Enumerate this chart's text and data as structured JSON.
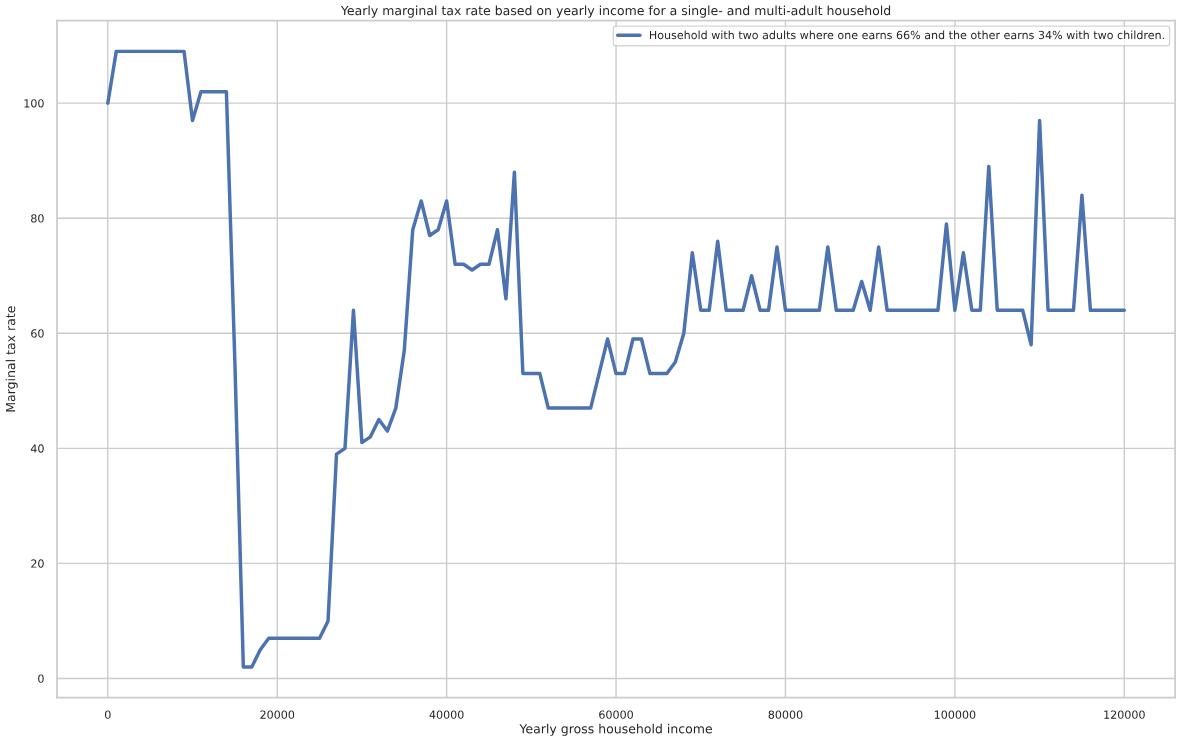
{
  "chart_data": {
    "type": "line",
    "title": "Yearly marginal tax rate based on yearly income for a single- and multi-adult household",
    "xlabel": "Yearly gross household income",
    "ylabel": "Marginal tax rate",
    "x": [
      0,
      1000,
      2000,
      3000,
      4000,
      5000,
      6000,
      7000,
      8000,
      9000,
      10000,
      11000,
      12000,
      13000,
      14000,
      15000,
      16000,
      17000,
      18000,
      19000,
      20000,
      21000,
      22000,
      23000,
      24000,
      25000,
      26000,
      27000,
      28000,
      29000,
      30000,
      31000,
      32000,
      33000,
      34000,
      35000,
      36000,
      37000,
      38000,
      39000,
      40000,
      41000,
      42000,
      43000,
      44000,
      45000,
      46000,
      47000,
      48000,
      49000,
      50000,
      51000,
      52000,
      53000,
      54000,
      55000,
      56000,
      57000,
      58000,
      59000,
      60000,
      61000,
      62000,
      63000,
      64000,
      65000,
      66000,
      67000,
      68000,
      69000,
      70000,
      71000,
      72000,
      73000,
      74000,
      75000,
      76000,
      77000,
      78000,
      79000,
      80000,
      81000,
      82000,
      83000,
      84000,
      85000,
      86000,
      87000,
      88000,
      89000,
      90000,
      91000,
      92000,
      93000,
      94000,
      95000,
      96000,
      97000,
      98000,
      99000,
      100000,
      101000,
      102000,
      103000,
      104000,
      105000,
      106000,
      107000,
      108000,
      109000,
      110000,
      111000,
      112000,
      113000,
      114000,
      115000,
      116000,
      117000,
      118000,
      119000,
      120000
    ],
    "series": [
      {
        "name": "Household with two adults where one earns 66% and the other earns 34% with two children.",
        "color": "#4c72b0",
        "values": [
          100,
          109,
          109,
          109,
          109,
          109,
          109,
          109,
          109,
          109,
          97,
          102,
          102,
          102,
          102,
          55,
          2,
          2,
          5,
          7,
          7,
          7,
          7,
          7,
          7,
          7,
          10,
          39,
          40,
          64,
          41,
          42,
          45,
          43,
          47,
          57,
          78,
          83,
          77,
          78,
          83,
          72,
          72,
          71,
          72,
          72,
          78,
          66,
          88,
          53,
          53,
          53,
          47,
          47,
          47,
          47,
          47,
          47,
          53,
          59,
          53,
          53,
          59,
          59,
          53,
          53,
          53,
          55,
          60,
          74,
          64,
          64,
          76,
          64,
          64,
          64,
          70,
          64,
          64,
          75,
          64,
          64,
          64,
          64,
          64,
          75,
          64,
          64,
          64,
          69,
          64,
          75,
          64,
          64,
          64,
          64,
          64,
          64,
          64,
          79,
          64,
          74,
          64,
          64,
          89,
          64,
          64,
          64,
          64,
          58,
          97,
          64,
          64,
          64,
          64,
          84,
          64,
          64,
          64,
          64,
          64
        ]
      }
    ],
    "xlim": [
      -6000,
      126000
    ],
    "xticks": [
      0,
      20000,
      40000,
      60000,
      80000,
      100000,
      120000
    ],
    "ylim": [
      -3.35,
      114.35
    ],
    "yticks": [
      0,
      20,
      40,
      60,
      80,
      100
    ],
    "grid": true,
    "legend": "top right",
    "line_style": "solid",
    "marker": "none"
  }
}
